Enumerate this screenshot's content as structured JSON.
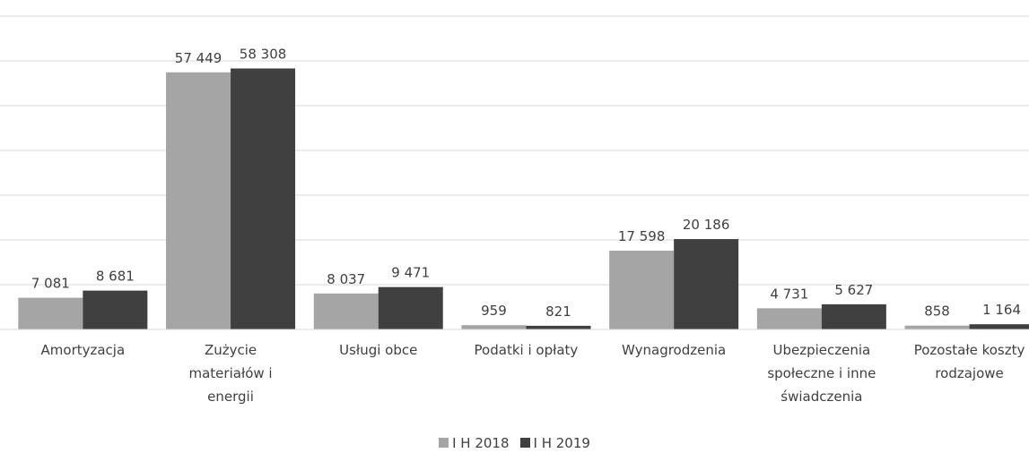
{
  "chart_data": {
    "type": "bar",
    "categories": [
      "Amortyzacja",
      "Zużycie materiałów i energii",
      "Usługi obce",
      "Podatki i opłaty",
      "Wynagrodzenia",
      "Ubezpieczenia społeczne i inne świadczenia",
      "Pozostałe koszty rodzajowe"
    ],
    "series": [
      {
        "name": "I H 2018",
        "color": "#a5a5a5",
        "values": [
          7081,
          57449,
          8037,
          959,
          17598,
          4731,
          858
        ],
        "value_labels": [
          "7 081",
          "57 449",
          "8 037",
          "959",
          "17 598",
          "4 731",
          "858"
        ]
      },
      {
        "name": "I H 2019",
        "color": "#404040",
        "values": [
          8681,
          58308,
          9471,
          821,
          20186,
          5627,
          1164
        ],
        "value_labels": [
          "8 681",
          "58 308",
          "9 471",
          "821",
          "20 186",
          "5 627",
          "1 164"
        ]
      }
    ],
    "ylim": [
      0,
      70000
    ],
    "yticks": [
      0,
      10000,
      20000,
      30000,
      40000,
      50000,
      60000,
      70000
    ],
    "grid": true,
    "legend": "bottom"
  }
}
